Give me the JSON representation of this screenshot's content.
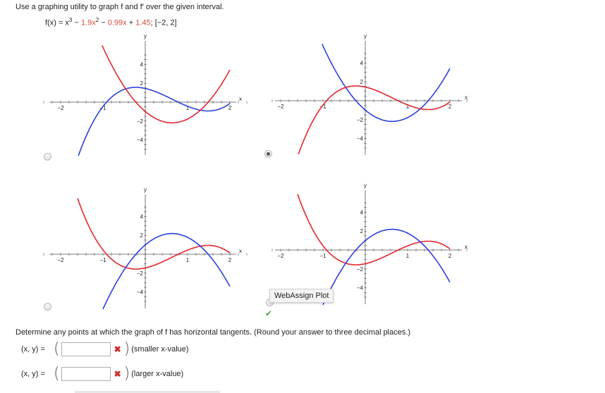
{
  "question": {
    "prompt": "Use a graphing utility to graph f and f′ over the given interval.",
    "function_prefix": "f(x) = x",
    "exp3": "3",
    "minus1": " − ",
    "coef2": "1.9x",
    "exp2": "2",
    "minus2": " − ",
    "coef1": "0.99x",
    "plus": " + ",
    "coef0": "1.45",
    "interval": ";   [−2, 2]"
  },
  "axis_labels": {
    "x": "x",
    "y": "y"
  },
  "tick_labels": {
    "x": [
      "−2",
      "−1",
      "1",
      "2"
    ],
    "y": [
      "4",
      "2",
      "−2",
      "−4"
    ]
  },
  "options": [
    {
      "id": "a",
      "selected": false
    },
    {
      "id": "b",
      "selected": true
    },
    {
      "id": "c",
      "selected": false
    },
    {
      "id": "d",
      "selected": false
    }
  ],
  "tooltip": "WebAssign Plot",
  "colors": {
    "f": "#e3262d",
    "fprime": "#2b3fe0"
  },
  "horizontal_tangents": {
    "question": "Determine any points at which the graph of f has horizontal tangents. (Round your answer to three decimal places.)",
    "answer1": {
      "label": "(x, y) =",
      "value": "",
      "note": "(smaller x-value)",
      "status": "incorrect"
    },
    "answer2": {
      "label": "(x, y) =",
      "value": "",
      "note": "(larger x-value)",
      "status": "incorrect"
    }
  }
}
